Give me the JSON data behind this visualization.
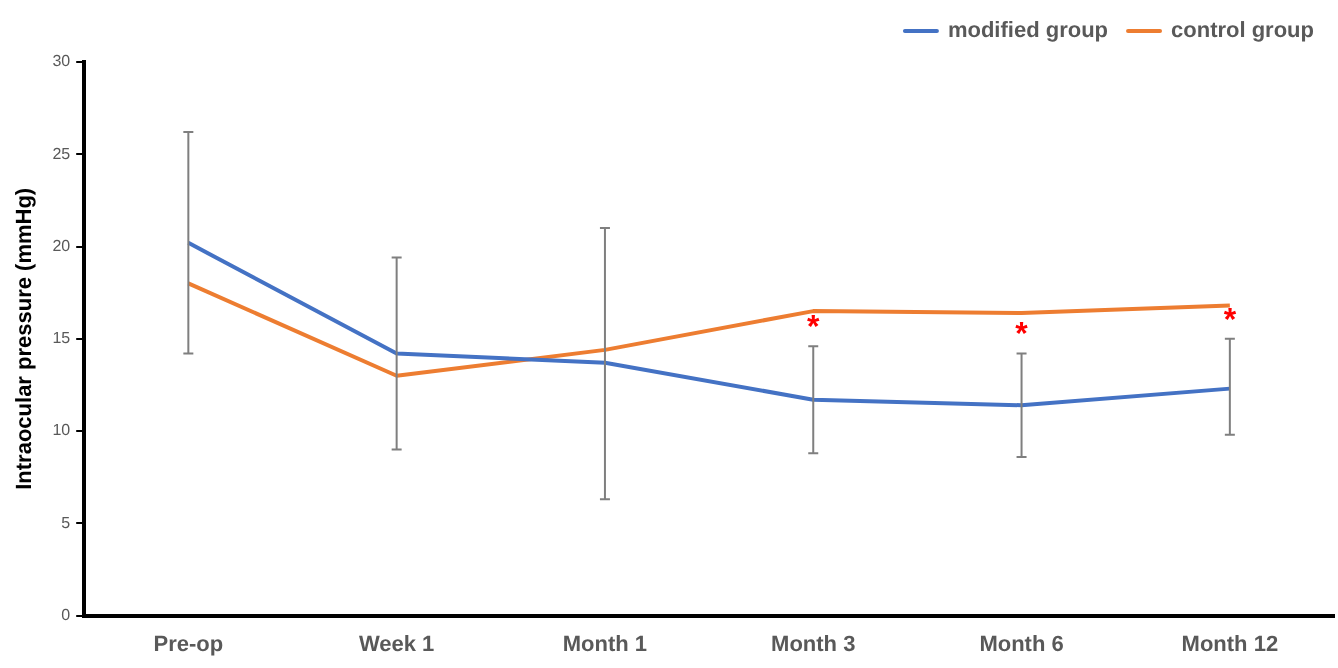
{
  "chart_data": {
    "type": "line",
    "ylabel": "Intraocular pressure (mmHg)",
    "categories": [
      "Pre-op",
      "Week 1",
      "Month 1",
      "Month 3",
      "Month 6",
      "Month 12"
    ],
    "series": [
      {
        "name": "modified group",
        "color": "#4472c4",
        "values": [
          20.2,
          14.2,
          13.7,
          11.7,
          11.4,
          12.3
        ],
        "errors": [
          [
            14.2,
            26.2
          ],
          [
            9.0,
            19.4
          ],
          [
            6.3,
            21.0
          ],
          [
            8.8,
            14.6
          ],
          [
            8.6,
            14.2
          ],
          [
            9.8,
            15.0
          ]
        ]
      },
      {
        "name": "control group",
        "color": "#ed7d31",
        "values": [
          18.0,
          13.0,
          14.4,
          16.5,
          16.4,
          16.8
        ]
      }
    ],
    "ylim": [
      0,
      30
    ],
    "yticks": [
      0,
      5,
      10,
      15,
      20,
      25,
      30
    ],
    "grid": false,
    "legend": "top right",
    "marker": "none",
    "annotations": [
      {
        "text": "*",
        "x": "Month 3",
        "y": 14.6
      },
      {
        "text": "*",
        "x": "Month 6",
        "y": 14.2
      },
      {
        "text": "*",
        "x": "Month 12",
        "y": 15.0
      }
    ]
  }
}
